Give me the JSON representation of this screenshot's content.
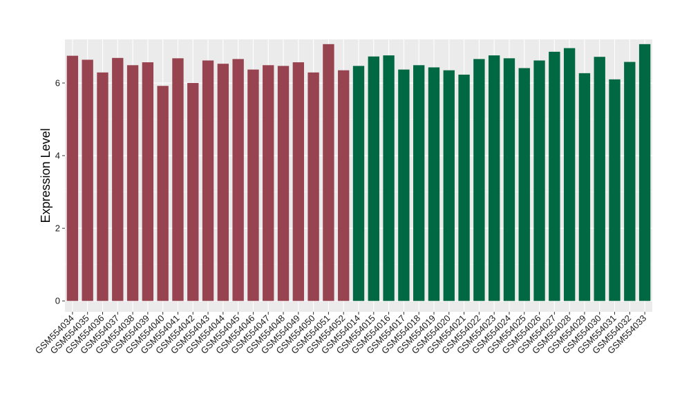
{
  "chart_data": {
    "type": "bar",
    "title": "",
    "xlabel": "",
    "ylabel": "Expression Level",
    "ylim": [
      -0.3,
      7.2
    ],
    "yticks": [
      0,
      2,
      4,
      6
    ],
    "grid": true,
    "legend": "none",
    "panel_color": "#ebebeb",
    "categories": [
      "GSM554034",
      "GSM554035",
      "GSM554036",
      "GSM554037",
      "GSM554038",
      "GSM554039",
      "GSM554040",
      "GSM554041",
      "GSM554042",
      "GSM554043",
      "GSM554044",
      "GSM554045",
      "GSM554046",
      "GSM554047",
      "GSM554048",
      "GSM554049",
      "GSM554050",
      "GSM554051",
      "GSM554052",
      "GSM554014",
      "GSM554015",
      "GSM554016",
      "GSM554017",
      "GSM554018",
      "GSM554019",
      "GSM554020",
      "GSM554021",
      "GSM554022",
      "GSM554023",
      "GSM554024",
      "GSM554025",
      "GSM554026",
      "GSM554027",
      "GSM554028",
      "GSM554029",
      "GSM554030",
      "GSM554031",
      "GSM554032",
      "GSM554033"
    ],
    "values": [
      6.75,
      6.64,
      6.29,
      6.69,
      6.49,
      6.57,
      5.92,
      6.68,
      6.0,
      6.62,
      6.53,
      6.66,
      6.37,
      6.49,
      6.47,
      6.57,
      6.29,
      7.07,
      6.35,
      6.47,
      6.73,
      6.76,
      6.37,
      6.49,
      6.43,
      6.35,
      6.23,
      6.66,
      6.76,
      6.68,
      6.41,
      6.62,
      6.86,
      6.96,
      6.27,
      6.72,
      6.1,
      6.58,
      7.07
    ],
    "bar_colors": [
      "#974350",
      "#974350",
      "#974350",
      "#974350",
      "#974350",
      "#974350",
      "#974350",
      "#974350",
      "#974350",
      "#974350",
      "#974350",
      "#974350",
      "#974350",
      "#974350",
      "#974350",
      "#974350",
      "#974350",
      "#974350",
      "#974350",
      "#006843",
      "#006843",
      "#006843",
      "#006843",
      "#006843",
      "#006843",
      "#006843",
      "#006843",
      "#006843",
      "#006843",
      "#006843",
      "#006843",
      "#006843",
      "#006843",
      "#006843",
      "#006843",
      "#006843",
      "#006843",
      "#006843",
      "#006843"
    ]
  }
}
